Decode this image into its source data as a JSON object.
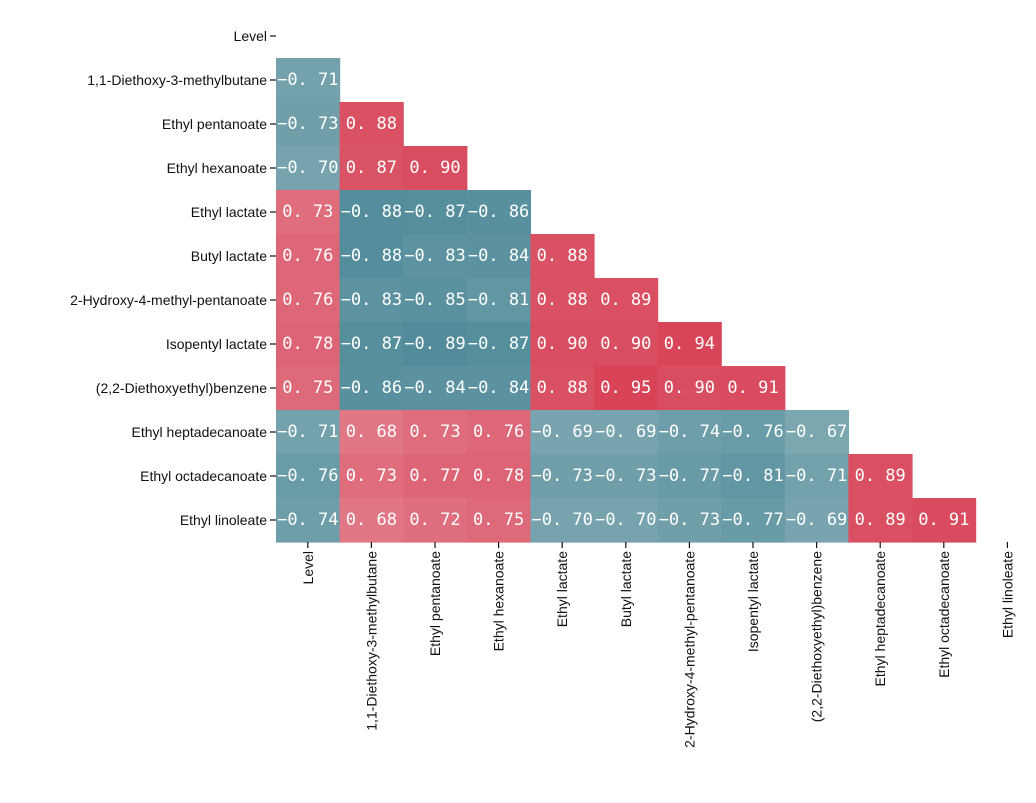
{
  "chart_data": {
    "type": "heatmap",
    "variables": [
      "Level",
      "1,1-Diethoxy-3-methylbutane",
      "Ethyl pentanoate",
      "Ethyl hexanoate",
      "Ethyl lactate",
      "Butyl lactate",
      "2-Hydroxy-4-methyl-pentanoate",
      "Isopentyl lactate",
      "(2,2-Diethoxyethyl)benzene",
      "Ethyl heptadecanoate",
      "Ethyl octadecanoate",
      "Ethyl linoleate"
    ],
    "matrix": [
      [],
      [
        -0.71
      ],
      [
        -0.73,
        0.88
      ],
      [
        -0.7,
        0.87,
        0.9
      ],
      [
        0.73,
        -0.88,
        -0.87,
        -0.86
      ],
      [
        0.76,
        -0.88,
        -0.83,
        -0.84,
        0.88
      ],
      [
        0.76,
        -0.83,
        -0.85,
        -0.81,
        0.88,
        0.89
      ],
      [
        0.78,
        -0.87,
        -0.89,
        -0.87,
        0.9,
        0.9,
        0.94
      ],
      [
        0.75,
        -0.86,
        -0.84,
        -0.84,
        0.88,
        0.95,
        0.9,
        0.91
      ],
      [
        -0.71,
        0.68,
        0.73,
        0.76,
        -0.69,
        -0.69,
        -0.74,
        -0.76,
        -0.67
      ],
      [
        -0.76,
        0.73,
        0.77,
        0.78,
        -0.73,
        -0.73,
        -0.77,
        -0.81,
        -0.71,
        0.89
      ],
      [
        -0.74,
        0.68,
        0.72,
        0.75,
        -0.7,
        -0.7,
        -0.73,
        -0.77,
        -0.69,
        0.89,
        0.91
      ]
    ],
    "cell_labels": [
      [],
      [
        "−0. 71"
      ],
      [
        "−0. 73",
        "0. 88"
      ],
      [
        "−0. 70",
        "0. 87",
        "0. 90"
      ],
      [
        "0. 73",
        "−0. 88",
        "−0. 87",
        "−0. 86"
      ],
      [
        "0. 76",
        "−0. 88",
        "−0. 83",
        "−0. 84",
        "0. 88"
      ],
      [
        "0. 76",
        "−0. 83",
        "−0. 85",
        "−0. 81",
        "0. 88",
        "0. 89"
      ],
      [
        "0. 78",
        "−0. 87",
        "−0. 89",
        "−0. 87",
        "0. 90",
        "0. 90",
        "0. 94"
      ],
      [
        "0. 75",
        "−0. 86",
        "−0. 84",
        "−0. 84",
        "0. 88",
        "0. 95",
        "0. 90",
        "0. 91"
      ],
      [
        "−0. 71",
        "0. 68",
        "0. 73",
        "0. 76",
        "−0. 69",
        "−0. 69",
        "−0. 74",
        "−0. 76",
        "−0. 67"
      ],
      [
        "−0. 76",
        "0. 73",
        "0. 77",
        "0. 78",
        "−0. 73",
        "−0. 73",
        "−0. 77",
        "−0. 81",
        "−0. 71",
        "0. 89"
      ],
      [
        "−0. 74",
        "0. 68",
        "0. 72",
        "0. 75",
        "−0. 70",
        "−0. 70",
        "−0. 73",
        "−0. 77",
        "−0. 69",
        "0. 89",
        "0. 91"
      ]
    ],
    "lower_triangle_only": true,
    "colors": {
      "positive": "#d63a4f",
      "negative": "#3e7f8e",
      "neutral": "#f7f7f7"
    },
    "value_range": [
      -1,
      1
    ],
    "grid": false,
    "legend": "none"
  }
}
